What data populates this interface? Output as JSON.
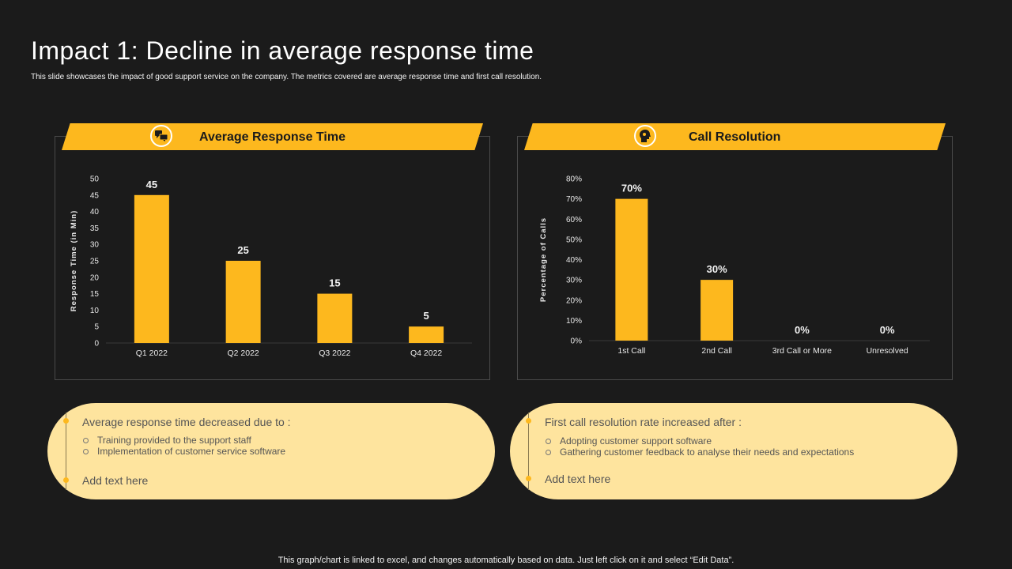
{
  "slide": {
    "title": "Impact 1: Decline in average response time",
    "subtitle": "This slide showcases the impact of good support service on the company. The metrics covered are average response time and first call resolution.",
    "footer": "This graph/chart is linked to excel,  and changes automatically based on data. Just left click on it and select “Edit Data”."
  },
  "colors": {
    "accent": "#fdb81e",
    "background": "#1b1b1b",
    "note_bg": "#fee49e"
  },
  "panels": [
    {
      "banner_title": "Average Response Time",
      "icon": "chat-bubbles-icon"
    },
    {
      "banner_title": "Call Resolution",
      "icon": "head-gear-icon"
    }
  ],
  "notes": [
    {
      "heading": "Average response time decreased due to :",
      "bullets": [
        "Training provided to the support staff",
        "Implementation of customer service software"
      ],
      "add_text": "Add text here"
    },
    {
      "heading": "First call resolution rate increased after :",
      "bullets": [
        "Adopting customer support software",
        "Gathering customer feedback to analyse their needs and expectations"
      ],
      "add_text": "Add text here"
    }
  ],
  "chart_data": [
    {
      "type": "bar",
      "title": "Average Response Time",
      "categories": [
        "Q1 2022",
        "Q2 2022",
        "Q3 2022",
        "Q4 2022"
      ],
      "values": [
        45,
        25,
        15,
        5
      ],
      "data_labels": [
        "45",
        "25",
        "15",
        "5"
      ],
      "ylabel": "Response Time (in Min)",
      "ylim": [
        0,
        50
      ],
      "yticks": [
        0,
        5,
        10,
        15,
        20,
        25,
        30,
        35,
        40,
        45,
        50
      ],
      "ytick_labels": [
        "0",
        "5",
        "10",
        "15",
        "20",
        "25",
        "30",
        "35",
        "40",
        "45",
        "50"
      ],
      "grid": false
    },
    {
      "type": "bar",
      "title": "Call Resolution",
      "categories": [
        "1st Call",
        "2nd Call",
        "3rd Call or More",
        "Unresolved"
      ],
      "values": [
        70,
        30,
        0,
        0
      ],
      "data_labels": [
        "70%",
        "30%",
        "0%",
        "0%"
      ],
      "ylabel": "Percentage of Calls",
      "ylim": [
        0,
        80
      ],
      "yticks": [
        0,
        10,
        20,
        30,
        40,
        50,
        60,
        70,
        80
      ],
      "ytick_labels": [
        "0%",
        "10%",
        "20%",
        "30%",
        "40%",
        "50%",
        "60%",
        "70%",
        "80%"
      ],
      "grid": false
    }
  ]
}
